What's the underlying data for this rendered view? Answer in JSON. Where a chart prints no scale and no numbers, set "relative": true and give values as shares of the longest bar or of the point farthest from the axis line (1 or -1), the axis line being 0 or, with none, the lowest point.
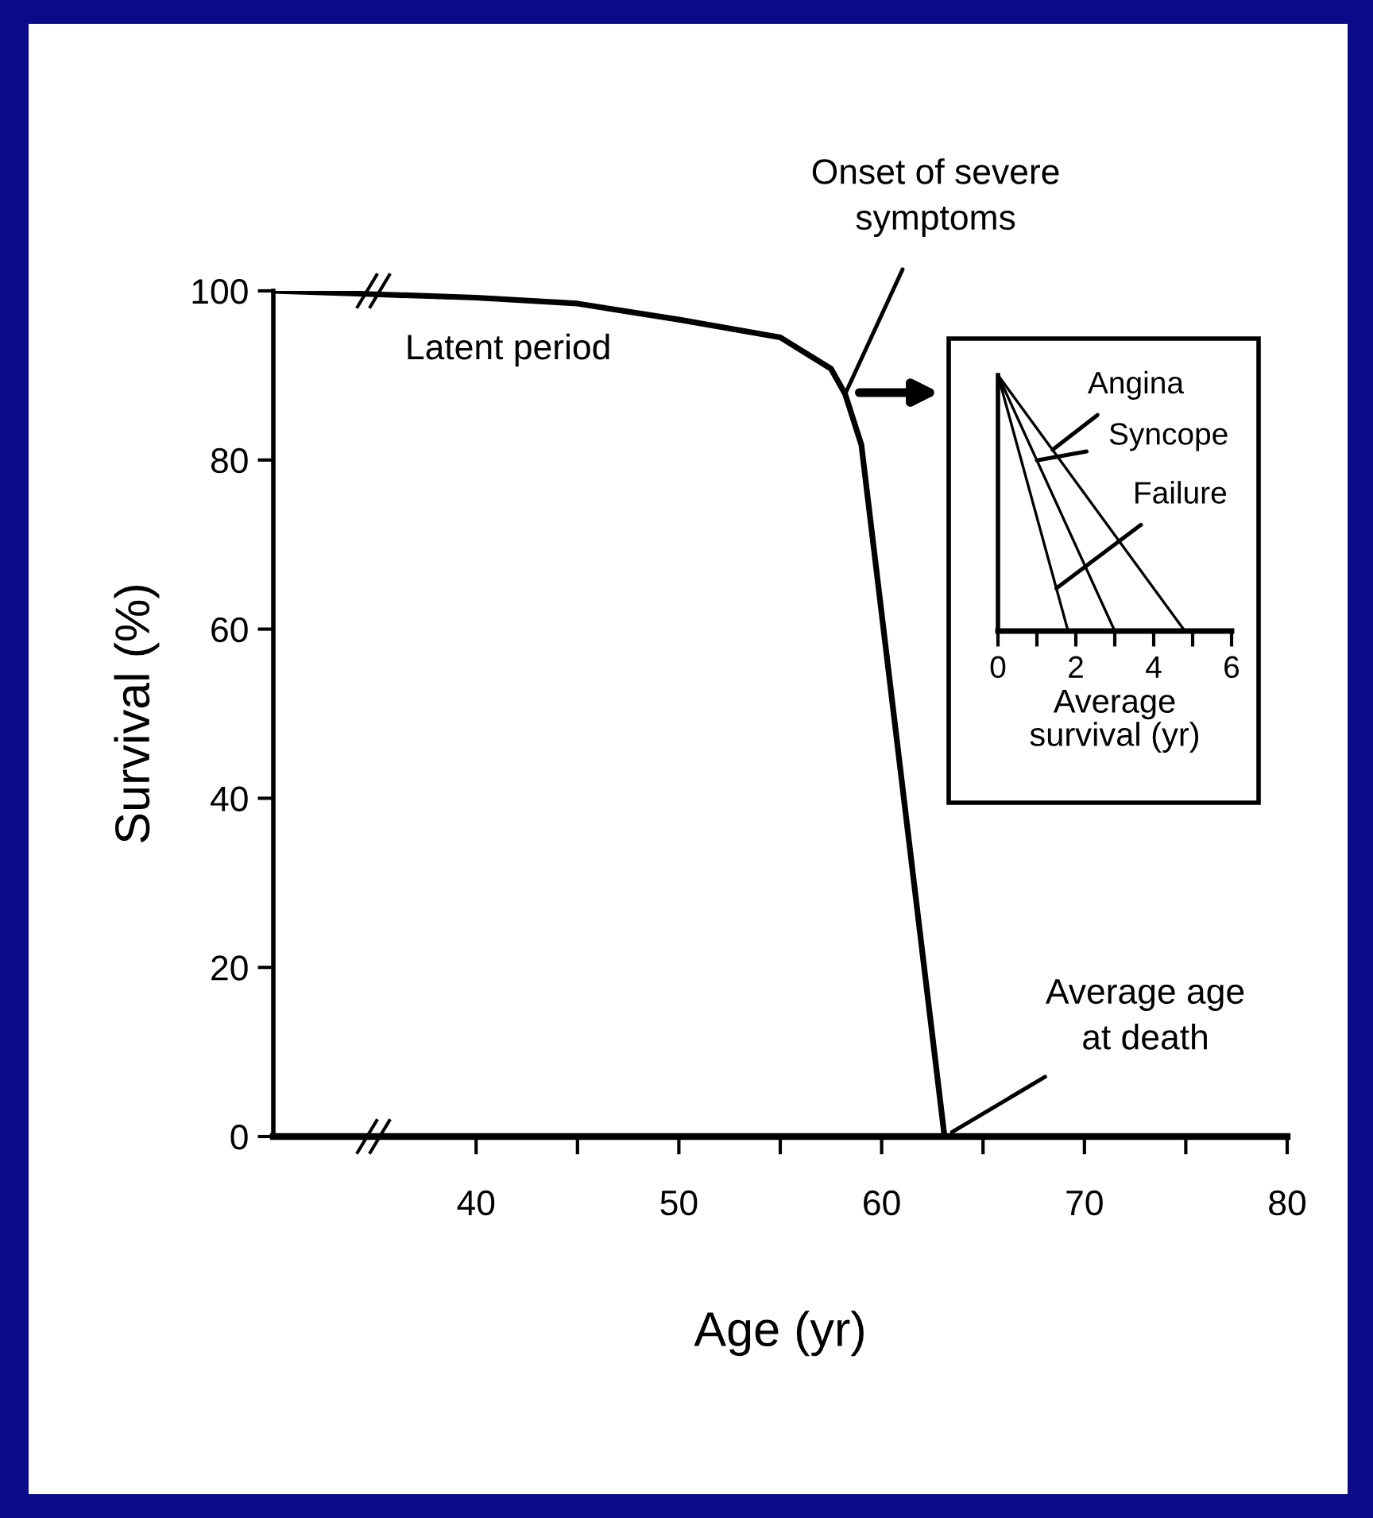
{
  "chart_data": [
    {
      "type": "line",
      "xlabel": "Age (yr)",
      "ylabel": "Survival (%)",
      "color": "#000000",
      "x": [
        30,
        35,
        40,
        45,
        50,
        55,
        57.5,
        58.2,
        59,
        63.1
      ],
      "values": [
        100,
        99.6,
        99.2,
        98.5,
        96.6,
        94.5,
        90.8,
        87.8,
        81.8,
        0
      ],
      "xlim": [
        30,
        80
      ],
      "ylim": [
        0,
        100
      ],
      "xticks": [
        40,
        {
          "value": 45,
          "label": null
        },
        50,
        {
          "value": 55,
          "label": null
        },
        60,
        {
          "value": 65,
          "label": null
        },
        70,
        {
          "value": 75,
          "label": null
        },
        80
      ],
      "yticks": [
        0,
        20,
        40,
        60,
        80,
        100
      ],
      "annotations": [
        "Latent period",
        {
          "text": "Onset of severe\nsymptoms",
          "x": 58.2,
          "y": 87.8
        },
        {
          "text": "Average age\nat death",
          "x": 63.1,
          "y": 0
        }
      ]
    },
    {
      "type": "line",
      "xlabel": "Average\nsurvival (yr)",
      "relative": true,
      "series": [
        {
          "name": "Angina",
          "color": "#000000",
          "x": [
            0,
            4.8
          ],
          "values": [
            1,
            0
          ]
        },
        {
          "name": "Syncope",
          "color": "#000000",
          "x": [
            0,
            3
          ],
          "values": [
            1,
            0
          ]
        },
        {
          "name": "Failure",
          "color": "#000000",
          "x": [
            0,
            1.8
          ],
          "values": [
            1,
            0
          ]
        }
      ],
      "xlim": [
        0,
        6
      ],
      "xticks": [
        0,
        {
          "value": 1,
          "label": null
        },
        2,
        {
          "value": 3,
          "label": null
        },
        4,
        {
          "value": 5,
          "label": null
        },
        6
      ]
    }
  ]
}
